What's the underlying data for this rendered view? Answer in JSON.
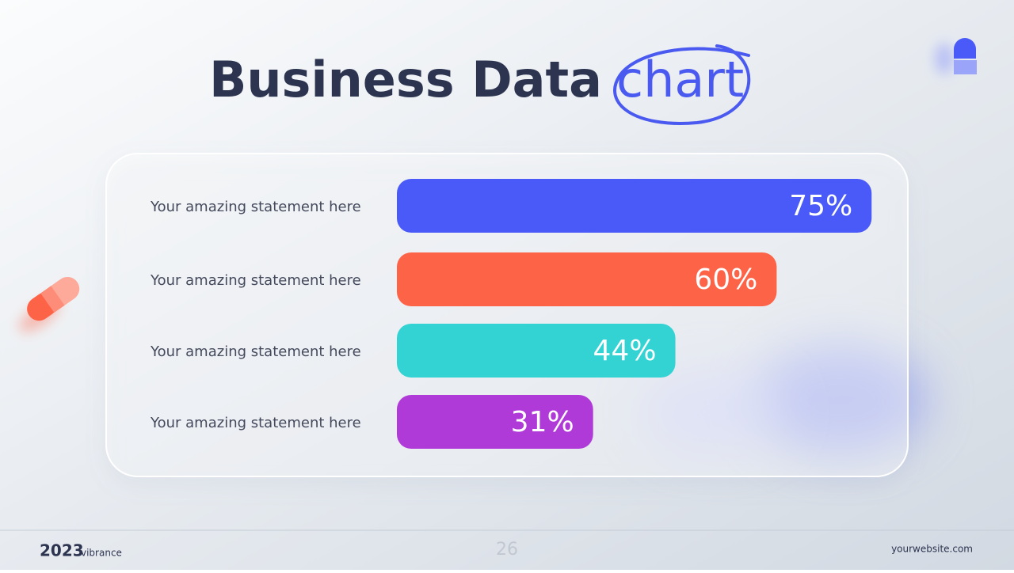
{
  "chart_data": {
    "type": "bar",
    "orientation": "horizontal",
    "title": "Business Data",
    "title_highlight": "chart",
    "categories": [
      "Your amazing statement here",
      "Your amazing statement here",
      "Your amazing statement here",
      "Your amazing statement here"
    ],
    "values": [
      75,
      60,
      44,
      31
    ],
    "value_labels": [
      "75%",
      "60%",
      "44%",
      "31%"
    ],
    "colors": [
      "#4a5af8",
      "#fd6347",
      "#33d3d3",
      "#b03ad8"
    ]
  },
  "footer": {
    "brand_year": "2023",
    "brand_name": "vibrance",
    "page_number": "26",
    "website": "yourwebsite.com"
  }
}
